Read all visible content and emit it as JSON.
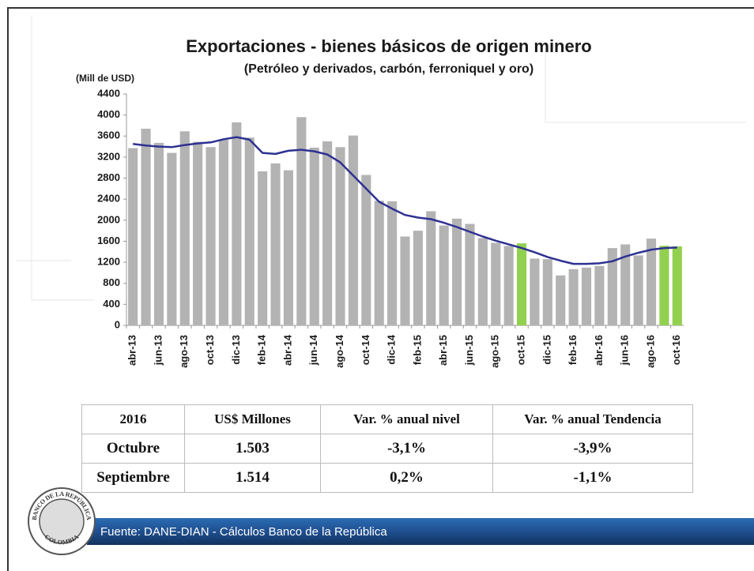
{
  "chart_data": {
    "type": "bar",
    "title": "Exportaciones - bienes básicos de origen minero",
    "subtitle": "(Petróleo y derivados, carbón, ferroniquel y oro)",
    "y_label": "(Mill de USD)",
    "categories": [
      "abr-13",
      null,
      "jun-13",
      null,
      "ago-13",
      null,
      "oct-13",
      null,
      "dic-13",
      null,
      "feb-14",
      null,
      "abr-14",
      null,
      "jun-14",
      null,
      "ago-14",
      null,
      "oct-14",
      null,
      "dic-14",
      null,
      "feb-15",
      null,
      "abr-15",
      null,
      "jun-15",
      null,
      "ago-15",
      null,
      "oct-15",
      null,
      "dic-15",
      null,
      "feb-16",
      null,
      "abr-16",
      null,
      "jun-16",
      null,
      "ago-16",
      null,
      "oct-16"
    ],
    "bars": {
      "values": [
        3370,
        3740,
        3470,
        3280,
        3690,
        3490,
        3390,
        3530,
        3860,
        3570,
        2930,
        3080,
        2950,
        3960,
        3380,
        3500,
        3390,
        3610,
        2860,
        2370,
        2360,
        1690,
        1800,
        2170,
        1900,
        2030,
        1930,
        1660,
        1570,
        1510,
        1560,
        1270,
        1260,
        950,
        1070,
        1100,
        1130,
        1470,
        1540,
        1330,
        1650,
        1514,
        1503
      ],
      "colors": [
        "#b3b3b3",
        "#b3b3b3",
        "#b3b3b3",
        "#b3b3b3",
        "#b3b3b3",
        "#b3b3b3",
        "#b3b3b3",
        "#b3b3b3",
        "#b3b3b3",
        "#b3b3b3",
        "#b3b3b3",
        "#b3b3b3",
        "#b3b3b3",
        "#b3b3b3",
        "#b3b3b3",
        "#b3b3b3",
        "#b3b3b3",
        "#b3b3b3",
        "#b3b3b3",
        "#b3b3b3",
        "#b3b3b3",
        "#b3b3b3",
        "#b3b3b3",
        "#b3b3b3",
        "#b3b3b3",
        "#b3b3b3",
        "#b3b3b3",
        "#b3b3b3",
        "#b3b3b3",
        "#b3b3b3",
        "#92d050",
        "#b3b3b3",
        "#b3b3b3",
        "#b3b3b3",
        "#b3b3b3",
        "#b3b3b3",
        "#b3b3b3",
        "#b3b3b3",
        "#b3b3b3",
        "#b3b3b3",
        "#b3b3b3",
        "#92d050",
        "#92d050"
      ]
    },
    "trend": {
      "color": "#2e3192",
      "values": [
        3450,
        3420,
        3400,
        3390,
        3430,
        3460,
        3480,
        3540,
        3580,
        3530,
        3280,
        3260,
        3320,
        3340,
        3310,
        3250,
        3100,
        2850,
        2600,
        2350,
        2220,
        2100,
        2050,
        2020,
        1950,
        1870,
        1780,
        1690,
        1610,
        1540,
        1470,
        1390,
        1300,
        1230,
        1170,
        1170,
        1180,
        1220,
        1310,
        1380,
        1440,
        1470,
        1480
      ]
    },
    "ylim": [
      0,
      4400
    ],
    "yticks": [
      0,
      400,
      800,
      1200,
      1600,
      2000,
      2400,
      2800,
      3200,
      3600,
      4000,
      4400
    ],
    "grid": false
  },
  "table": {
    "rows": [
      [
        "2016",
        "US$ Millones",
        "Var. % anual nivel",
        "Var. % anual Tendencia"
      ],
      [
        "Octubre",
        "1.503",
        "-3,1%",
        "-3,9%"
      ],
      [
        "Septiembre",
        "1.514",
        "0,2%",
        "-1,1%"
      ]
    ]
  },
  "footer": {
    "source": "Fuente: DANE-DIAN - Cálculos Banco de la República",
    "logo_top": "BANCO DE LA REPÚBLICA",
    "logo_bottom": "COLOMBIA"
  }
}
